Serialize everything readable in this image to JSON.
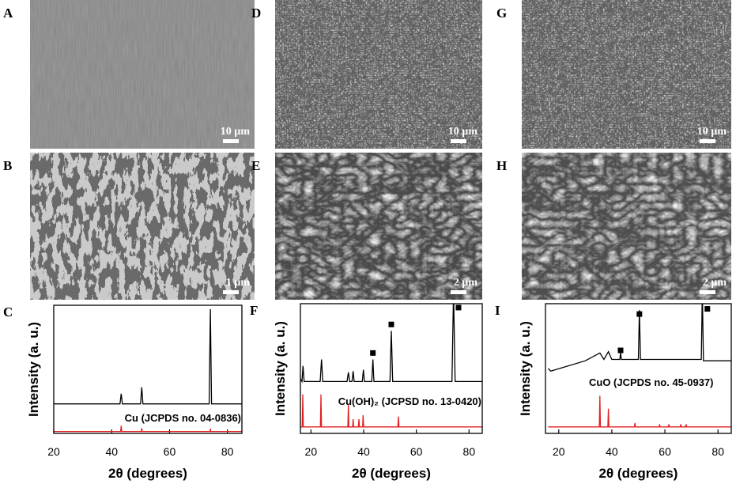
{
  "panels": [
    {
      "label": "A",
      "scale_bar": "10 µm"
    },
    {
      "label": "B",
      "scale_bar": "1 µm"
    },
    {
      "label": "D",
      "scale_bar": "10 µm"
    },
    {
      "label": "E",
      "scale_bar": "2 µm"
    },
    {
      "label": "G",
      "scale_bar": "10 µm"
    },
    {
      "label": "H",
      "scale_bar": "2 µm"
    }
  ],
  "chart_data": [
    {
      "type": "line",
      "panel_label": "C",
      "x_label": "2θ (degrees)",
      "y_label": "Intensity (a. u.)",
      "xlim": [
        20,
        85
      ],
      "xticks": [
        20,
        40,
        60,
        80
      ],
      "ylim": [
        0,
        100
      ],
      "annotation": "Cu (JCPDS no. 04-0836)",
      "series": [
        {
          "color": "#000000",
          "x": [
            20,
            42.9,
            43.3,
            43.7,
            50.0,
            50.4,
            50.8,
            73.7,
            74.1,
            74.5,
            85
          ],
          "values": [
            23,
            23,
            31,
            23,
            23,
            36,
            23,
            23,
            97,
            23,
            23
          ]
        },
        {
          "color": "#e02020",
          "x": [
            20,
            43.1,
            43.3,
            43.5,
            50.2,
            50.4,
            50.6,
            73.9,
            74.1,
            74.3,
            85
          ],
          "values": [
            1.5,
            1.5,
            6,
            1.5,
            1.5,
            4,
            1.5,
            1.5,
            3,
            1.5,
            1.5
          ]
        }
      ],
      "marker_x": [],
      "marker_y": []
    },
    {
      "type": "line",
      "panel_label": "F",
      "x_label": "2θ (degrees)",
      "y_label": "Intensity (a. u.)",
      "xlim": [
        16,
        85
      ],
      "xticks": [
        20,
        40,
        60,
        80
      ],
      "ylim": [
        0,
        100
      ],
      "annotation": "Cu(OH)₂ (JCPSD no. 13-0420)",
      "series": [
        {
          "color": "#000000",
          "x": [
            16,
            16.6,
            17,
            17.4,
            23.5,
            24,
            24.5,
            33.7,
            34.2,
            34.7,
            35.6,
            36,
            36.4,
            39.5,
            39.9,
            40.3,
            43.1,
            43.5,
            43.9,
            50.0,
            50.5,
            51.0,
            73.5,
            74.1,
            74.7,
            85
          ],
          "values": [
            42,
            40,
            52,
            40,
            40,
            57,
            40,
            40,
            47,
            40,
            40,
            48,
            40,
            40,
            49,
            40,
            40,
            57,
            40,
            40,
            79,
            40,
            40,
            110,
            40,
            40
          ]
        },
        {
          "color": "#e02020",
          "x": [
            16,
            16.7,
            16.9,
            17.1,
            23.6,
            23.8,
            24.0,
            34.0,
            34.2,
            34.4,
            35.8,
            36.0,
            36.2,
            38.0,
            38.2,
            38.4,
            39.6,
            39.8,
            40.0,
            53.0,
            53.2,
            53.4,
            85
          ],
          "values": [
            5,
            5,
            30,
            5,
            5,
            30,
            5,
            5,
            22,
            5,
            5,
            11,
            5,
            5,
            11,
            5,
            5,
            14,
            5,
            5,
            13,
            5,
            5
          ]
        }
      ],
      "marker_x": [
        43.5,
        50.5,
        76
      ],
      "marker_y": [
        62,
        84,
        97
      ]
    },
    {
      "type": "line",
      "panel_label": "I",
      "x_label": "2θ (degrees)",
      "y_label": "Intensity (a. u.)",
      "xlim": [
        15,
        85
      ],
      "xticks": [
        20,
        40,
        60,
        80
      ],
      "ylim": [
        0,
        100
      ],
      "annotation": "CuO (JCPDS no. 45-0937)",
      "series": [
        {
          "color": "#000000",
          "x": [
            16,
            17,
            30,
            35.5,
            37,
            38.7,
            40,
            43.0,
            43.3,
            43.6,
            50.0,
            50.4,
            50.8,
            73.7,
            74.1,
            74.5,
            85
          ],
          "values": [
            50,
            48,
            56,
            62,
            57,
            63,
            57,
            57,
            62,
            57,
            57,
            95,
            57,
            57,
            110,
            56,
            56
          ]
        },
        {
          "color": "#e02020",
          "x": [
            16,
            35.3,
            35.5,
            35.7,
            38.5,
            38.7,
            38.9,
            48.5,
            48.7,
            48.9,
            57.8,
            58.0,
            58.2,
            61.3,
            61.5,
            61.7,
            65.8,
            66.0,
            66.2,
            67.8,
            68.0,
            68.2,
            85
          ],
          "values": [
            5,
            5,
            29,
            5,
            5,
            19,
            5,
            5,
            8,
            5,
            5,
            7,
            5,
            5,
            7,
            5,
            5,
            7,
            5,
            5,
            7,
            5,
            5
          ]
        }
      ],
      "marker_x": [
        43.3,
        50.4,
        76
      ],
      "marker_y": [
        64,
        92,
        96
      ]
    }
  ]
}
